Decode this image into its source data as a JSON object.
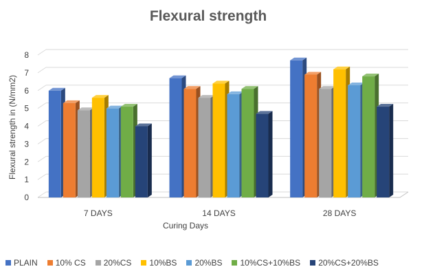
{
  "chart_data": {
    "type": "bar",
    "title": "Flexural strength",
    "xlabel": "Curing Days",
    "ylabel": "Flexural strength in (N/mm2)",
    "categories": [
      "7 DAYS",
      "14 DAYS",
      "28 DAYS"
    ],
    "ylim": [
      0,
      8
    ],
    "yticks": [
      "0",
      "1",
      "2",
      "3",
      "4",
      "5",
      "6",
      "7",
      "8"
    ],
    "grid": true,
    "style": "3d-clustered-column",
    "legend_position": "bottom",
    "series": [
      {
        "name": "PLAIN",
        "color": "#4472C4",
        "values": [
          6.0,
          6.7,
          7.7
        ]
      },
      {
        "name": "10% CS",
        "color": "#ED7D31",
        "values": [
          5.3,
          6.1,
          6.9
        ]
      },
      {
        "name": "20%CS",
        "color": "#A5A5A5",
        "values": [
          4.9,
          5.6,
          6.1
        ]
      },
      {
        "name": "10%BS",
        "color": "#FFC000",
        "values": [
          5.6,
          6.4,
          7.2
        ]
      },
      {
        "name": "20%BS",
        "color": "#5B9BD5",
        "values": [
          5.0,
          5.8,
          6.3
        ]
      },
      {
        "name": "10%CS+10%BS",
        "color": "#70AD47",
        "values": [
          5.1,
          6.1,
          6.8
        ]
      },
      {
        "name": "20%CS+20%BS",
        "color": "#264478",
        "values": [
          4.0,
          4.7,
          5.1
        ]
      }
    ]
  }
}
